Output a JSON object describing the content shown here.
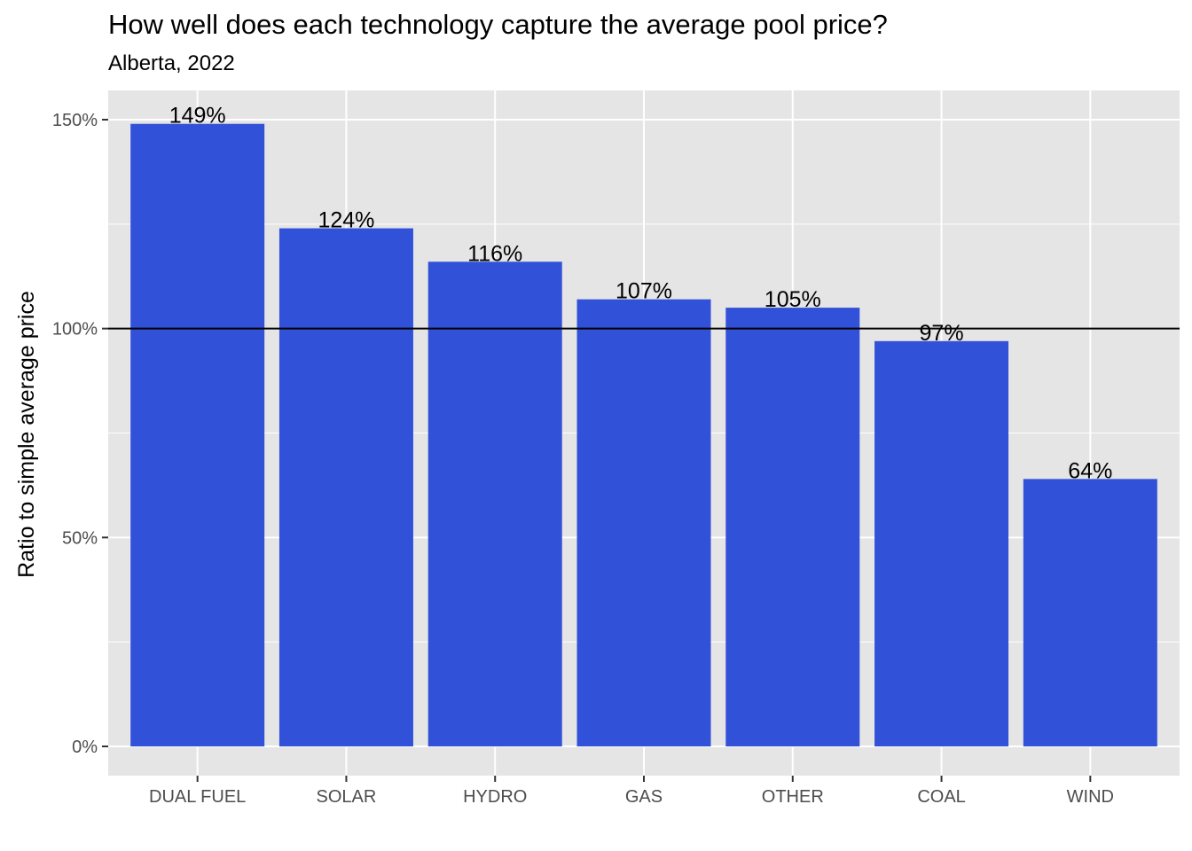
{
  "chart_data": {
    "type": "bar",
    "title": "How well does each technology capture the average pool price?",
    "subtitle": "Alberta, 2022",
    "xlabel": "",
    "ylabel": "Ratio to simple average price",
    "categories": [
      "DUAL FUEL",
      "SOLAR",
      "HYDRO",
      "GAS",
      "OTHER",
      "COAL",
      "WIND"
    ],
    "values": [
      1.49,
      1.24,
      1.16,
      1.07,
      1.05,
      0.97,
      0.64
    ],
    "data_labels": [
      "149%",
      "124%",
      "116%",
      "107%",
      "105%",
      "97%",
      "64%"
    ],
    "ylim": [
      -0.07,
      1.57
    ],
    "y_ticks": [
      0,
      0.5,
      1.0,
      1.5
    ],
    "y_tick_labels": [
      "0%",
      "50%",
      "100%",
      "150%"
    ],
    "reference_line": 1.0,
    "grid": true,
    "bar_color": "#3251D9",
    "panel_color": "#E5E5E5",
    "grid_color": "#FFFFFF",
    "reference_line_color": "#000000"
  }
}
